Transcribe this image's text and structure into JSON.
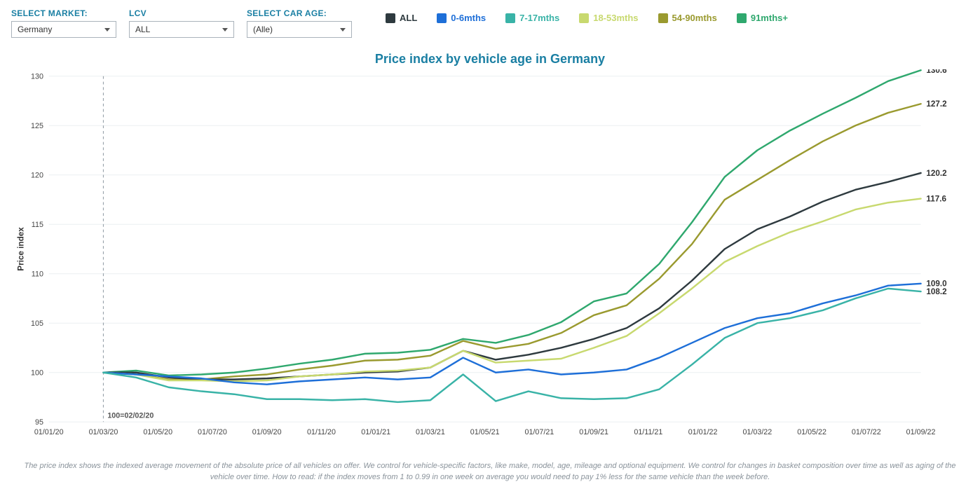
{
  "controls": {
    "market": {
      "label": "SELECT MARKET:",
      "value": "Germany"
    },
    "lcv": {
      "label": "LCV",
      "value": "ALL"
    },
    "carAge": {
      "label": "SELECT CAR AGE:",
      "value": "(Alle)"
    }
  },
  "legend": [
    {
      "key": "all",
      "label": "ALL",
      "color": "#2e3a3f"
    },
    {
      "key": "m0_6",
      "label": "0-6mths",
      "color": "#1e6fd8"
    },
    {
      "key": "m7_17",
      "label": "7-17mths",
      "color": "#39b3a7"
    },
    {
      "key": "m18_53",
      "label": "18-53mths",
      "color": "#c8d96f"
    },
    {
      "key": "m54_90",
      "label": "54-90mths",
      "color": "#9a9a2f"
    },
    {
      "key": "m91p",
      "label": "91mths+",
      "color": "#2fa86e"
    }
  ],
  "chart": {
    "title": "Price index by vehicle age in Germany",
    "yAxis": {
      "label": "Price index",
      "min": 95,
      "max": 130,
      "tickStep": 5,
      "ticks": [
        95,
        100,
        105,
        110,
        115,
        120,
        125,
        130
      ]
    },
    "xAxis": {
      "ticks": [
        "01/01/20",
        "01/03/20",
        "01/05/20",
        "01/07/20",
        "01/09/20",
        "01/11/20",
        "01/01/21",
        "01/03/21",
        "01/05/21",
        "01/07/21",
        "01/09/21",
        "01/11/21",
        "01/01/22",
        "01/03/22",
        "01/05/22",
        "01/07/22",
        "01/09/22"
      ]
    },
    "reference": {
      "xIndex": 1,
      "label": "100=02/02/20"
    },
    "background_color": "#ffffff",
    "grid_color": "#eceff1",
    "series": {
      "all": {
        "color": "#2e3a3f",
        "endLabel": "120.2",
        "values": [
          100.0,
          100.0,
          99.5,
          99.3,
          99.3,
          99.4,
          99.6,
          99.8,
          100.0,
          100.1,
          100.5,
          102.2,
          101.3,
          101.8,
          102.5,
          103.4,
          104.5,
          106.5,
          109.3,
          112.5,
          114.5,
          115.8,
          117.3,
          118.5,
          119.3,
          120.2
        ]
      },
      "m0_6": {
        "color": "#1e6fd8",
        "endLabel": "109.0",
        "values": [
          100.0,
          99.8,
          99.6,
          99.4,
          99.0,
          98.8,
          99.1,
          99.3,
          99.5,
          99.3,
          99.5,
          101.5,
          100.0,
          100.3,
          99.8,
          100.0,
          100.3,
          101.5,
          103.0,
          104.5,
          105.5,
          106.0,
          107.0,
          107.8,
          108.8,
          109.0
        ]
      },
      "m7_17": {
        "color": "#39b3a7",
        "endLabel": "108.2",
        "values": [
          100.0,
          99.5,
          98.5,
          98.1,
          97.8,
          97.3,
          97.3,
          97.2,
          97.3,
          97.0,
          97.2,
          99.8,
          97.1,
          98.1,
          97.4,
          97.3,
          97.4,
          98.3,
          100.8,
          103.5,
          105.0,
          105.5,
          106.3,
          107.5,
          108.5,
          108.2
        ]
      },
      "m18_53": {
        "color": "#c8d96f",
        "endLabel": "117.6",
        "values": [
          100.0,
          99.8,
          99.2,
          99.2,
          99.1,
          99.2,
          99.6,
          99.8,
          100.1,
          100.2,
          100.5,
          102.2,
          101.0,
          101.2,
          101.4,
          102.5,
          103.7,
          106.0,
          108.5,
          111.2,
          112.8,
          114.2,
          115.3,
          116.5,
          117.2,
          117.6
        ]
      },
      "m54_90": {
        "color": "#9a9a2f",
        "endLabel": "127.2",
        "values": [
          100.0,
          99.8,
          99.3,
          99.3,
          99.6,
          99.8,
          100.3,
          100.7,
          101.2,
          101.3,
          101.7,
          103.2,
          102.4,
          102.9,
          104.0,
          105.8,
          106.8,
          109.5,
          113.0,
          117.5,
          119.5,
          121.5,
          123.4,
          125.0,
          126.3,
          127.2
        ]
      },
      "m91p": {
        "color": "#2fa86e",
        "endLabel": "130.6",
        "values": [
          100.0,
          100.2,
          99.7,
          99.8,
          100.0,
          100.4,
          100.9,
          101.3,
          101.9,
          102.0,
          102.3,
          103.4,
          103.0,
          103.8,
          105.1,
          107.2,
          108.0,
          111.0,
          115.2,
          119.8,
          122.5,
          124.5,
          126.2,
          127.8,
          129.5,
          130.6
        ]
      }
    }
  },
  "footnote": "The price index shows the indexed average movement of the absolute price of all vehicles on offer. We control for vehicle-specific factors, like make, model, age, mileage and optional equipment. We control for changes in basket composition over time as well as aging of the vehicle over time. How to read: if the index moves from 1 to 0.99 in one week on average you would need to pay 1% less for the same vehicle than the week before."
}
